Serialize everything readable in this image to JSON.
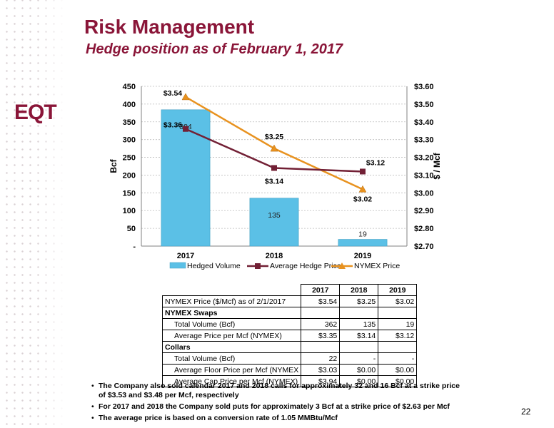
{
  "header": {
    "title": "Risk Management",
    "subtitle": "Hedge position as of February 1, 2017"
  },
  "logo": {
    "text": "EQT",
    "color": "#8a1538"
  },
  "colors": {
    "brand": "#8a1538",
    "bar": "#5bc0e6",
    "hedge_line": "#722035",
    "nymex_line": "#e8921f"
  },
  "chart_data": {
    "type": "bar",
    "categories": [
      "2017",
      "2018",
      "2019"
    ],
    "series": [
      {
        "name": "Hedged Volume",
        "type": "bar",
        "axis": "left",
        "values": [
          384,
          135,
          19
        ],
        "labels": [
          "384",
          "135",
          "19"
        ]
      },
      {
        "name": "Average Hedge Price",
        "type": "line",
        "axis": "right",
        "values": [
          3.36,
          3.14,
          3.12
        ],
        "labels": [
          "$3.36",
          "$3.14",
          "$3.12"
        ]
      },
      {
        "name": "NYMEX Price",
        "type": "line",
        "axis": "right",
        "values": [
          3.54,
          3.25,
          3.02
        ],
        "labels": [
          "$3.54",
          "$3.25",
          "$3.02"
        ]
      }
    ],
    "ylabel": "Bcf",
    "y2label": "$ / Mcf",
    "ylim": [
      0,
      450
    ],
    "y2lim": [
      2.7,
      3.6
    ],
    "yticks": [
      "-",
      "50",
      "100",
      "150",
      "200",
      "250",
      "300",
      "350",
      "400",
      "450"
    ],
    "y2ticks": [
      "$2.70",
      "$2.80",
      "$2.90",
      "$3.00",
      "$3.10",
      "$3.20",
      "$3.30",
      "$3.40",
      "$3.50",
      "$3.60"
    ],
    "grid": true,
    "legend": "bottom"
  },
  "table": {
    "headers": [
      "",
      "2017",
      "2018",
      "2019"
    ],
    "rows": [
      {
        "label": "NYMEX Price ($/Mcf) as of 2/1/2017",
        "kind": "data",
        "values": [
          "$3.54",
          "$3.25",
          "$3.02"
        ]
      },
      {
        "label": "NYMEX Swaps",
        "kind": "section",
        "values": [
          "",
          "",
          ""
        ]
      },
      {
        "label": "Total Volume (Bcf)",
        "kind": "indent",
        "values": [
          "362",
          "135",
          "19"
        ]
      },
      {
        "label": "Average Price per Mcf (NYMEX)",
        "kind": "indent",
        "values": [
          "$3.35",
          "$3.14",
          "$3.12"
        ]
      },
      {
        "label": "Collars",
        "kind": "section",
        "values": [
          "",
          "",
          ""
        ]
      },
      {
        "label": "Total Volume (Bcf)",
        "kind": "indent",
        "values": [
          "22",
          "-",
          "-"
        ]
      },
      {
        "label": "Average Floor Price per Mcf (NYMEX",
        "kind": "indent",
        "values": [
          "$3.03",
          "$0.00",
          "$0.00"
        ]
      },
      {
        "label": "Average Cap Price per Mcf (NYMEX)",
        "kind": "indent",
        "values": [
          "$3.94",
          "$0.00",
          "$0.00"
        ]
      }
    ]
  },
  "notes": [
    "The Company also sold calendar 2017 and 2018 calls for approximately 32 and 16 Bcf at a strike price of $3.53 and $3.48 per Mcf, respectively",
    "For 2017 and 2018 the Company sold puts for approximately 3 Bcf at a strike price of $2.63 per Mcf",
    "The average price is based on a conversion rate of 1.05 MMBtu/Mcf"
  ],
  "page_number": "22"
}
